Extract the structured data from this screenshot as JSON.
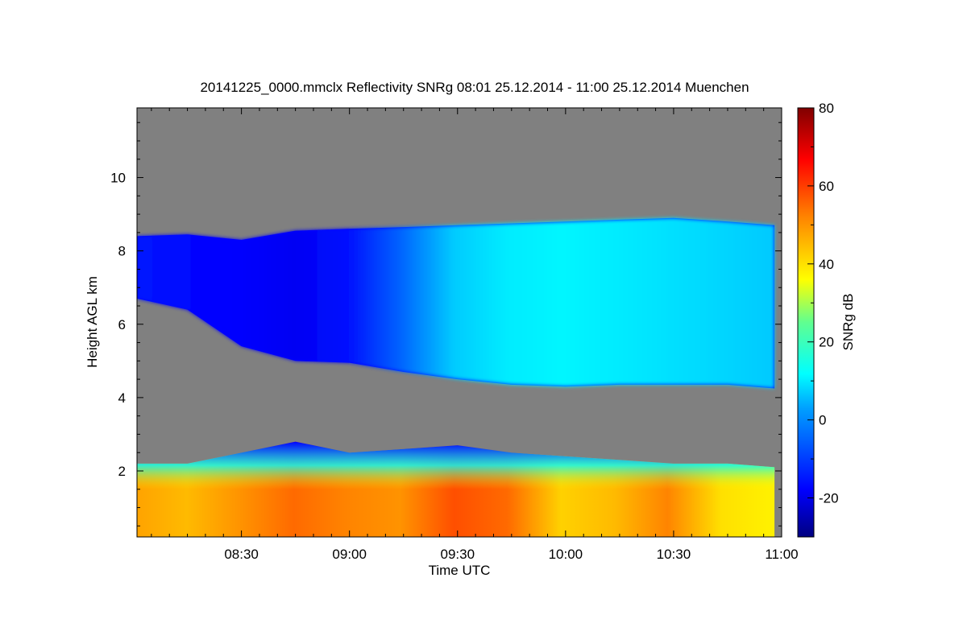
{
  "chart_data": {
    "type": "heatmap",
    "title": "20141225_0000.mmclx Reflectivity SNRg   08:01 25.12.2014 - 11:00 25.12.2014 Muenchen",
    "xlabel": "Time UTC",
    "ylabel": "Height AGL km",
    "x_ticks": [
      "08:30",
      "09:00",
      "09:30",
      "10:00",
      "10:30",
      "11:00"
    ],
    "x_tick_values_min": [
      30,
      60,
      90,
      120,
      150,
      180
    ],
    "xlim_min": [
      1,
      180
    ],
    "y_ticks": [
      "2",
      "4",
      "6",
      "8",
      "10"
    ],
    "y_tick_values": [
      2,
      4,
      6,
      8,
      10
    ],
    "ylim": [
      0.2,
      11.9
    ],
    "colorbar": {
      "label": "SNRg dB",
      "ticks": [
        "-20",
        "0",
        "20",
        "40",
        "60",
        "80"
      ],
      "tick_values": [
        -20,
        0,
        20,
        40,
        60,
        80
      ],
      "range": [
        -30,
        80
      ],
      "no_signal_color": "#808080"
    },
    "layers": [
      {
        "x_min": [
          1,
          15,
          30,
          45,
          60,
          75,
          90,
          105,
          120,
          135,
          150,
          165,
          178
        ],
        "top_km": [
          8.4,
          8.45,
          8.3,
          8.55,
          8.6,
          8.65,
          8.7,
          8.75,
          8.8,
          8.85,
          8.9,
          8.8,
          8.7
        ],
        "base_km": [
          6.7,
          6.4,
          5.4,
          5.0,
          4.95,
          4.7,
          4.5,
          4.35,
          4.3,
          4.35,
          4.35,
          4.35,
          4.25
        ],
        "snr_dB": [
          -15,
          -17,
          -18,
          -19,
          -16,
          -5,
          7,
          10,
          11,
          10,
          9,
          8,
          7
        ]
      },
      {
        "x_min": [
          1,
          15,
          30,
          45,
          60,
          75,
          90,
          105,
          120,
          135,
          150,
          165,
          178
        ],
        "top_km": [
          2.2,
          2.2,
          2.5,
          2.8,
          2.5,
          2.6,
          2.7,
          2.5,
          2.4,
          2.3,
          2.2,
          2.2,
          2.1
        ],
        "snr_dB": [
          48,
          45,
          50,
          55,
          52,
          50,
          58,
          55,
          42,
          45,
          52,
          40,
          38
        ]
      }
    ]
  }
}
